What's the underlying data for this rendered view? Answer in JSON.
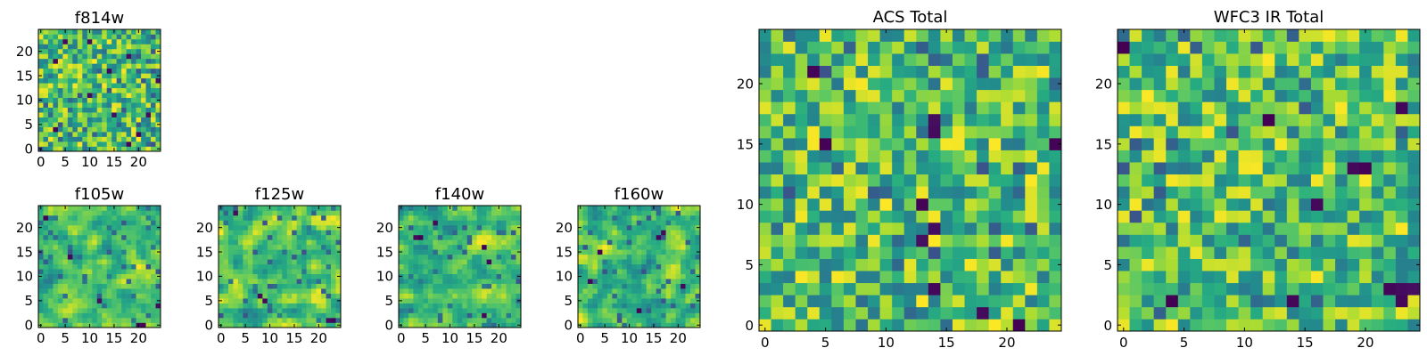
{
  "chart_data": [
    {
      "type": "heatmap",
      "title": "f814w",
      "colormap": "viridis",
      "grid_size": [
        25,
        25
      ],
      "xlim": [
        0,
        24
      ],
      "ylim": [
        0,
        24
      ],
      "xticks": [
        "0",
        "5",
        "10",
        "15",
        "20"
      ],
      "yticks": [
        "0",
        "5",
        "10",
        "15",
        "20"
      ],
      "seed": 814,
      "smooth": 0,
      "dark_spots": [
        [
          5,
          22
        ],
        [
          3,
          18
        ],
        [
          10,
          22
        ],
        [
          18,
          19
        ],
        [
          14,
          16
        ],
        [
          22,
          7
        ],
        [
          24,
          14
        ],
        [
          15,
          7
        ],
        [
          18,
          1
        ],
        [
          10,
          11
        ],
        [
          3,
          4
        ],
        [
          20,
          3
        ]
      ]
    },
    {
      "type": "heatmap",
      "title": "f105w",
      "colormap": "viridis",
      "grid_size": [
        25,
        25
      ],
      "xlim": [
        0,
        24
      ],
      "ylim": [
        0,
        24
      ],
      "xticks": [
        "0",
        "5",
        "10",
        "15",
        "20"
      ],
      "yticks": [
        "0",
        "5",
        "10",
        "15",
        "20"
      ],
      "seed": 105,
      "smooth": 1,
      "dark_spots": [
        [
          20,
          0
        ],
        [
          21,
          0
        ],
        [
          1,
          22
        ],
        [
          12,
          5
        ],
        [
          24,
          4
        ],
        [
          6,
          14
        ]
      ]
    },
    {
      "type": "heatmap",
      "title": "f125w",
      "colormap": "viridis",
      "grid_size": [
        25,
        25
      ],
      "xlim": [
        0,
        24
      ],
      "ylim": [
        0,
        24
      ],
      "xticks": [
        "0",
        "5",
        "10",
        "15",
        "20"
      ],
      "yticks": [
        "0",
        "5",
        "10",
        "15",
        "20"
      ],
      "seed": 125,
      "smooth": 1,
      "dark_spots": [
        [
          8,
          6
        ],
        [
          22,
          1
        ],
        [
          23,
          1
        ],
        [
          9,
          5
        ],
        [
          3,
          23
        ]
      ]
    },
    {
      "type": "heatmap",
      "title": "f140w",
      "colormap": "viridis",
      "grid_size": [
        25,
        25
      ],
      "xlim": [
        0,
        24
      ],
      "ylim": [
        0,
        24
      ],
      "xticks": [
        "0",
        "5",
        "10",
        "15",
        "20"
      ],
      "yticks": [
        "0",
        "5",
        "10",
        "15",
        "20"
      ],
      "seed": 140,
      "smooth": 1,
      "dark_spots": [
        [
          3,
          18
        ],
        [
          4,
          18
        ],
        [
          7,
          21
        ],
        [
          17,
          16
        ],
        [
          18,
          13
        ],
        [
          17,
          2
        ]
      ]
    },
    {
      "type": "heatmap",
      "title": "f160w",
      "colormap": "viridis",
      "grid_size": [
        25,
        25
      ],
      "xlim": [
        0,
        24
      ],
      "ylim": [
        0,
        24
      ],
      "xticks": [
        "0",
        "5",
        "10",
        "15",
        "20"
      ],
      "yticks": [
        "0",
        "5",
        "10",
        "15",
        "20"
      ],
      "seed": 160,
      "smooth": 1,
      "dark_spots": [
        [
          4,
          15
        ],
        [
          17,
          19
        ],
        [
          16,
          18
        ],
        [
          2,
          9
        ],
        [
          12,
          3
        ],
        [
          21,
          8
        ]
      ]
    },
    {
      "type": "heatmap",
      "title": "ACS Total",
      "colormap": "viridis",
      "grid_size": [
        25,
        25
      ],
      "xlim": [
        0,
        24
      ],
      "ylim": [
        0,
        24
      ],
      "xticks": [
        "0",
        "5",
        "10",
        "15",
        "20"
      ],
      "yticks": [
        "0",
        "5",
        "10",
        "15",
        "20"
      ],
      "seed": 7001,
      "smooth": 0,
      "dark_spots": [
        [
          4,
          21
        ],
        [
          14,
          17
        ],
        [
          14,
          16
        ],
        [
          5,
          15
        ],
        [
          24,
          15
        ],
        [
          14,
          8
        ],
        [
          13,
          7
        ],
        [
          14,
          3
        ],
        [
          18,
          1
        ],
        [
          21,
          0
        ],
        [
          13,
          10
        ]
      ]
    },
    {
      "type": "heatmap",
      "title": "WFC3 IR Total",
      "colormap": "viridis",
      "grid_size": [
        25,
        25
      ],
      "xlim": [
        0,
        24
      ],
      "ylim": [
        0,
        24
      ],
      "xticks": [
        "0",
        "5",
        "10",
        "15",
        "20"
      ],
      "yticks": [
        "0",
        "5",
        "10",
        "15",
        "20"
      ],
      "seed": 7002,
      "smooth": 0,
      "dark_spots": [
        [
          0,
          23
        ],
        [
          12,
          17
        ],
        [
          23,
          18
        ],
        [
          19,
          13
        ],
        [
          20,
          13
        ],
        [
          16,
          10
        ],
        [
          4,
          2
        ],
        [
          14,
          2
        ],
        [
          22,
          3
        ],
        [
          23,
          3
        ],
        [
          24,
          3
        ],
        [
          23,
          2
        ]
      ]
    }
  ]
}
